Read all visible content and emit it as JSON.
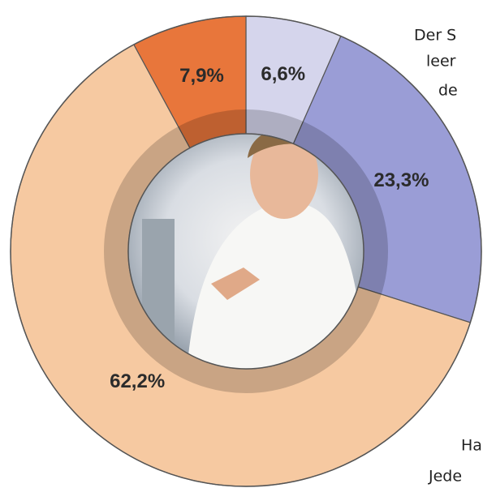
{
  "chart_data": {
    "type": "donut",
    "categories": [
      null,
      null,
      null,
      null
    ],
    "values": [
      6.6,
      23.3,
      62.2,
      7.9
    ],
    "value_labels": [
      "6,6%",
      "23,3%",
      "62,2%",
      "7,9%"
    ],
    "colors": [
      "#d5d5ec",
      "#9a9dd6",
      "#f6c9a1",
      "#e8763b"
    ]
  },
  "side_text": [
    "Der S",
    "leer",
    "de",
    "Ha",
    "Jede"
  ]
}
